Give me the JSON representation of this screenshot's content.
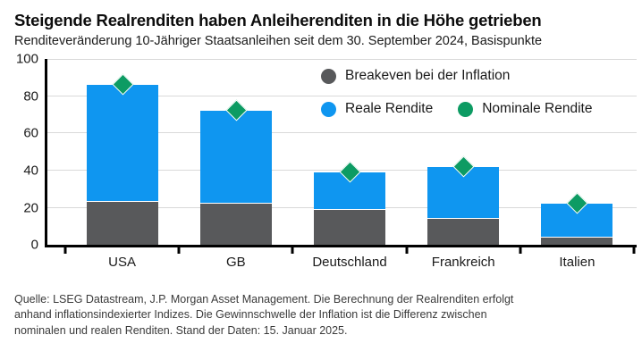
{
  "header": {
    "title": "Steigende Realrenditen haben Anleiherenditen in die Höhe getrieben",
    "subtitle": "Renditeveränderung 10-Jähriger Staatsanleihen seit dem 30. September 2024, Basispunkte"
  },
  "legend": {
    "breakeven": "Breakeven bei der Inflation",
    "real": "Reale Rendite",
    "nominal": "Nominale Rendite"
  },
  "chart_data": {
    "type": "bar",
    "stacked": true,
    "title": "Steigende Realrenditen haben Anleiherenditen in die Höhe getrieben",
    "subtitle": "Renditeveränderung 10-Jähriger Staatsanleihen seit dem 30. September 2024, Basispunkte",
    "categories": [
      "USA",
      "GB",
      "Deutschland",
      "Frankreich",
      "Italien"
    ],
    "series": [
      {
        "name": "Breakeven bei der Inflation",
        "color": "#58595b",
        "values": [
          23,
          22,
          19,
          14,
          4
        ]
      },
      {
        "name": "Reale Rendite",
        "color": "#0f96f0",
        "values": [
          63,
          50,
          20,
          28,
          18
        ]
      }
    ],
    "markers": {
      "name": "Nominale Rendite",
      "shape": "diamond",
      "color": "#0d9b63",
      "values": [
        86,
        72,
        39,
        42,
        22
      ]
    },
    "ylim": [
      0,
      100
    ],
    "yticks": [
      0,
      20,
      40,
      60,
      80,
      100
    ],
    "xlabel": "",
    "ylabel": "Basispunkte",
    "grid": "horizontal",
    "legend_position": "top-right"
  },
  "colors": {
    "axis": "#000000",
    "gridline": "#d9d9d9",
    "text": "#1a1a1a"
  },
  "footer": {
    "lines": [
      "Quelle: LSEG Datastream, J.P. Morgan Asset Management. Die Berechnung der Realrenditen erfolgt",
      "anhand inflationsindexierter Indizes. Die Gewinnschwelle der Inflation ist die Differenz zwischen",
      "nominalen und realen Renditen. Stand der Daten: 15. Januar 2025."
    ]
  }
}
